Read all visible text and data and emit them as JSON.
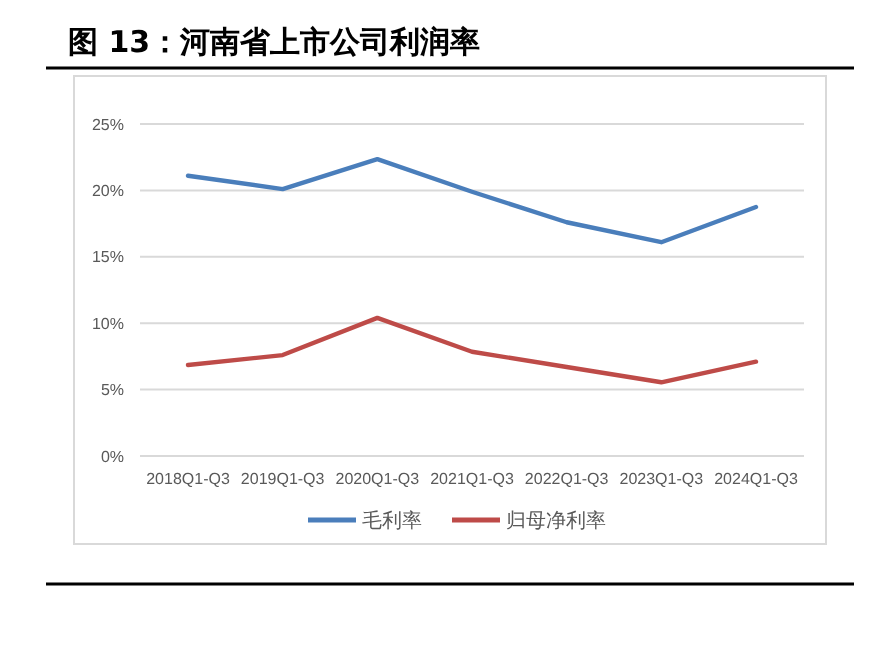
{
  "chart_data": {
    "type": "line",
    "title": "图 13：河南省上市公司利润率",
    "categories": [
      "2018Q1-Q3",
      "2019Q1-Q3",
      "2020Q1-Q3",
      "2021Q1-Q3",
      "2022Q1-Q3",
      "2023Q1-Q3",
      "2024Q1-Q3"
    ],
    "series": [
      {
        "name": "毛利率",
        "color": "#4a7ebb",
        "values": [
          21.1,
          20.1,
          22.35,
          19.9,
          17.6,
          16.1,
          18.75
        ]
      },
      {
        "name": "归母净利率",
        "color": "#be4b48",
        "values": [
          6.85,
          7.6,
          10.4,
          7.85,
          6.7,
          5.55,
          7.1
        ]
      }
    ],
    "ylim": [
      0,
      25
    ],
    "yticks": [
      {
        "value": 0,
        "label": "0%"
      },
      {
        "value": 5,
        "label": "5%"
      },
      {
        "value": 10,
        "label": "10%"
      },
      {
        "value": 15,
        "label": "15%"
      },
      {
        "value": 20,
        "label": "20%"
      },
      {
        "value": 25,
        "label": "25%"
      }
    ],
    "grid": "y",
    "legend": "bottom",
    "marker": "none",
    "line_style": "solid"
  }
}
